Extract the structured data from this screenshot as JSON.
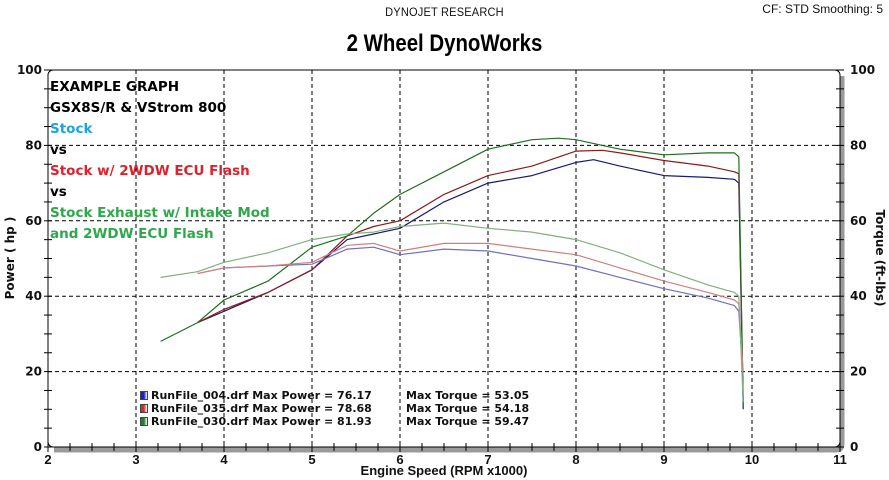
{
  "header": {
    "brand": "DYNOJET RESEARCH",
    "settings": "CF: STD  Smoothing: 5",
    "title": "2 Wheel DynoWorks"
  },
  "annotation": {
    "lines": [
      {
        "text": "EXAMPLE GRAPH",
        "color": "#000000"
      },
      {
        "text": "GSX8S/R & VStrom 800",
        "color": "#000000"
      },
      {
        "text": "Stock",
        "color": "#1aa3e0"
      },
      {
        "text": "vs",
        "color": "#000000"
      },
      {
        "text": "Stock w/ 2WDW ECU Flash",
        "color": "#e0202a"
      },
      {
        "text": "vs",
        "color": "#000000"
      },
      {
        "text": "Stock Exhaust w/ Intake Mod",
        "color": "#2ea84a"
      },
      {
        "text": "and 2WDW ECU Flash",
        "color": "#2ea84a"
      }
    ]
  },
  "legend": {
    "entries": [
      {
        "power_text": "RunFile_004.drf Max Power = 76.17",
        "torque_text": "Max Torque = 53.05",
        "color": "#2020c0"
      },
      {
        "power_text": "RunFile_035.drf Max Power = 78.68",
        "torque_text": "Max Torque = 54.18",
        "color": "#d03030"
      },
      {
        "power_text": "RunFile_030.drf Max Power = 81.93",
        "torque_text": "Max Torque = 59.47",
        "color": "#208030"
      }
    ]
  },
  "chart_data": {
    "type": "line",
    "title": "2 Wheel DynoWorks",
    "subtitle": "DYNOJET RESEARCH",
    "xlabel": "Engine Speed (RPM x1000)",
    "ylabel": "Power ( hp )",
    "y2label": "Torque (ft-lbs)",
    "xlim": [
      2,
      11
    ],
    "ylim": [
      0,
      100
    ],
    "y2lim": [
      0,
      100
    ],
    "xticks": [
      2,
      3,
      4,
      5,
      6,
      7,
      8,
      9,
      10,
      11
    ],
    "yticks": [
      0,
      20,
      40,
      60,
      80,
      100
    ],
    "y2ticks": [
      0,
      20,
      40,
      60,
      80,
      100
    ],
    "grid": true,
    "legend_position": "lower-left inside",
    "series": [
      {
        "name": "RunFile_004.drf Power",
        "axis": "left",
        "color": "#1a1a6e",
        "x": [
          3.7,
          4.0,
          4.5,
          5.0,
          5.4,
          5.7,
          6.0,
          6.5,
          7.0,
          7.5,
          8.0,
          8.2,
          8.5,
          9.0,
          9.5,
          9.8,
          9.85,
          9.9
        ],
        "y": [
          33,
          36,
          41,
          47,
          55,
          56.5,
          58,
          65,
          70,
          72,
          75.5,
          76.2,
          74.5,
          72,
          71.5,
          71,
          70,
          10
        ]
      },
      {
        "name": "RunFile_035.drf Power",
        "axis": "left",
        "color": "#8b1a1a",
        "x": [
          3.7,
          4.0,
          4.5,
          5.0,
          5.4,
          5.7,
          6.0,
          6.5,
          7.0,
          7.5,
          8.0,
          8.3,
          8.5,
          9.0,
          9.5,
          9.8,
          9.85,
          9.9
        ],
        "y": [
          33,
          36.5,
          41,
          47,
          56,
          58.5,
          60,
          67,
          72,
          74.5,
          78.5,
          78.7,
          78,
          76,
          74.5,
          73,
          72.5,
          12
        ]
      },
      {
        "name": "RunFile_030.drf Power",
        "axis": "left",
        "color": "#1f6e1f",
        "x": [
          3.28,
          3.7,
          4.0,
          4.5,
          5.0,
          5.4,
          5.7,
          6.0,
          6.5,
          7.0,
          7.5,
          7.8,
          8.0,
          8.3,
          8.5,
          9.0,
          9.5,
          9.8,
          9.85,
          9.9
        ],
        "y": [
          28,
          33,
          39,
          44,
          53,
          56,
          62,
          67,
          73,
          79,
          81.5,
          81.9,
          81.5,
          80,
          79,
          77.5,
          78,
          78,
          77,
          11
        ]
      },
      {
        "name": "RunFile_004.drf Torque",
        "axis": "right",
        "color": "#7070c0",
        "x": [
          3.7,
          4.0,
          4.5,
          5.0,
          5.4,
          5.7,
          6.0,
          6.5,
          7.0,
          7.5,
          8.0,
          8.5,
          9.0,
          9.5,
          9.8,
          9.85,
          9.9
        ],
        "y": [
          46,
          47.5,
          48,
          48.5,
          52.5,
          53,
          51,
          52.5,
          52,
          50,
          48,
          45,
          42,
          39.5,
          37.5,
          36,
          18
        ]
      },
      {
        "name": "RunFile_035.drf Torque",
        "axis": "right",
        "color": "#d08080",
        "x": [
          3.7,
          4.0,
          4.5,
          5.0,
          5.4,
          5.7,
          6.0,
          6.5,
          7.0,
          7.5,
          8.0,
          8.5,
          9.0,
          9.5,
          9.8,
          9.85,
          9.9
        ],
        "y": [
          46,
          47.5,
          48,
          49,
          53.5,
          54,
          52,
          54,
          54,
          52.5,
          51,
          47.5,
          44,
          41,
          39,
          38,
          20
        ]
      },
      {
        "name": "RunFile_030.drf Torque",
        "axis": "right",
        "color": "#80b080",
        "x": [
          3.28,
          3.7,
          4.0,
          4.5,
          5.0,
          5.4,
          5.7,
          6.0,
          6.5,
          7.0,
          7.5,
          8.0,
          8.5,
          9.0,
          9.5,
          9.8,
          9.85,
          9.9
        ],
        "y": [
          45,
          46.5,
          49,
          51.5,
          55,
          56.5,
          57,
          58.5,
          59.4,
          58,
          57,
          55,
          51.5,
          47,
          43,
          41,
          40,
          12
        ]
      }
    ]
  }
}
